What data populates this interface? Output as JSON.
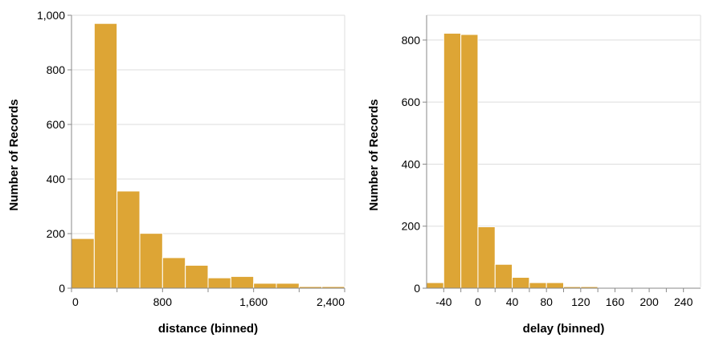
{
  "colors": {
    "bar": "#DDA535"
  },
  "chart_data": [
    {
      "type": "bar",
      "title": "",
      "xlabel": "distance (binned)",
      "ylabel": "Number of Records",
      "bin_start": 0,
      "bin_step": 200,
      "xlim": [
        0,
        2400
      ],
      "ylim": [
        0,
        1000
      ],
      "values": [
        182,
        970,
        356,
        201,
        112,
        84,
        38,
        43,
        18,
        18,
        6,
        6
      ],
      "xticks": [
        0,
        800,
        1600,
        2400
      ],
      "xtick_labels": [
        "0",
        "800",
        "1,600",
        "2,400"
      ],
      "yticks": [
        0,
        200,
        400,
        600,
        800,
        1000
      ],
      "ytick_labels": [
        "0",
        "200",
        "400",
        "600",
        "800",
        "1,000"
      ],
      "minor_xticks": [
        400,
        1200,
        2000
      ]
    },
    {
      "type": "bar",
      "title": "",
      "xlabel": "delay (binned)",
      "ylabel": "Number of Records",
      "bin_start": -60,
      "bin_step": 20,
      "xlim": [
        -60,
        260
      ],
      "ylim": [
        0,
        880
      ],
      "values": [
        18,
        822,
        818,
        198,
        77,
        35,
        18,
        18,
        5,
        5,
        2,
        2,
        2,
        2,
        2,
        2
      ],
      "xticks": [
        -40,
        0,
        40,
        80,
        120,
        160,
        200,
        240
      ],
      "xtick_labels": [
        "-40",
        "0",
        "40",
        "80",
        "120",
        "160",
        "200",
        "240"
      ],
      "yticks": [
        0,
        200,
        400,
        600,
        800
      ],
      "ytick_labels": [
        "0",
        "200",
        "400",
        "600",
        "800"
      ],
      "minor_xticks": [
        -20,
        20,
        60,
        100,
        140,
        180,
        220
      ]
    }
  ]
}
